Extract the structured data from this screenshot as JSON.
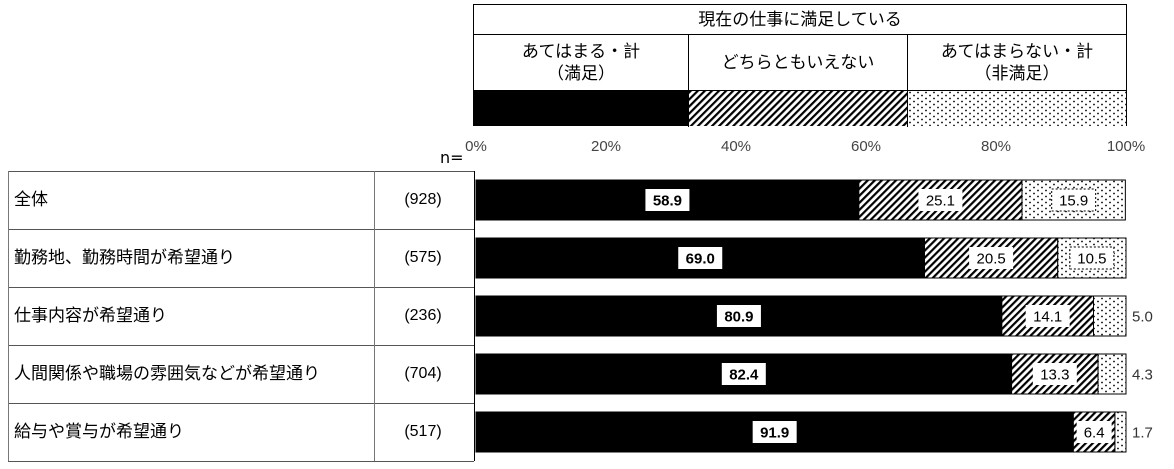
{
  "chart_data": {
    "type": "bar",
    "stacked": true,
    "orientation": "horizontal",
    "title": "現在の仕事に満足している",
    "n_prefix": "n=",
    "axis_ticks": [
      "0%",
      "20%",
      "40%",
      "60%",
      "80%",
      "100%"
    ],
    "xlim": [
      0,
      100
    ],
    "series": [
      {
        "name": "あてはまる・計\n（満足）",
        "pattern": "solid",
        "color": "#000000"
      },
      {
        "name": "どちらともいえない",
        "pattern": "diagonal-hatch",
        "color": "#000000"
      },
      {
        "name": "あてはまらない・計\n（非満足）",
        "pattern": "dots",
        "color": "#000000"
      }
    ],
    "categories": [
      {
        "label": "全体",
        "n": "(928)",
        "values": [
          58.9,
          25.1,
          15.9
        ]
      },
      {
        "label": "勤務地、勤務時間が希望通り",
        "n": "(575)",
        "values": [
          69.0,
          20.5,
          10.5
        ]
      },
      {
        "label": "仕事内容が希望通り",
        "n": "(236)",
        "values": [
          80.9,
          14.1,
          5.0
        ]
      },
      {
        "label": "人間関係や職場の雰囲気などが希望通り",
        "n": "(704)",
        "values": [
          82.4,
          13.3,
          4.3
        ]
      },
      {
        "label": "給与や賞与が希望通り",
        "n": "(517)",
        "values": [
          91.9,
          6.4,
          1.7
        ]
      }
    ]
  }
}
